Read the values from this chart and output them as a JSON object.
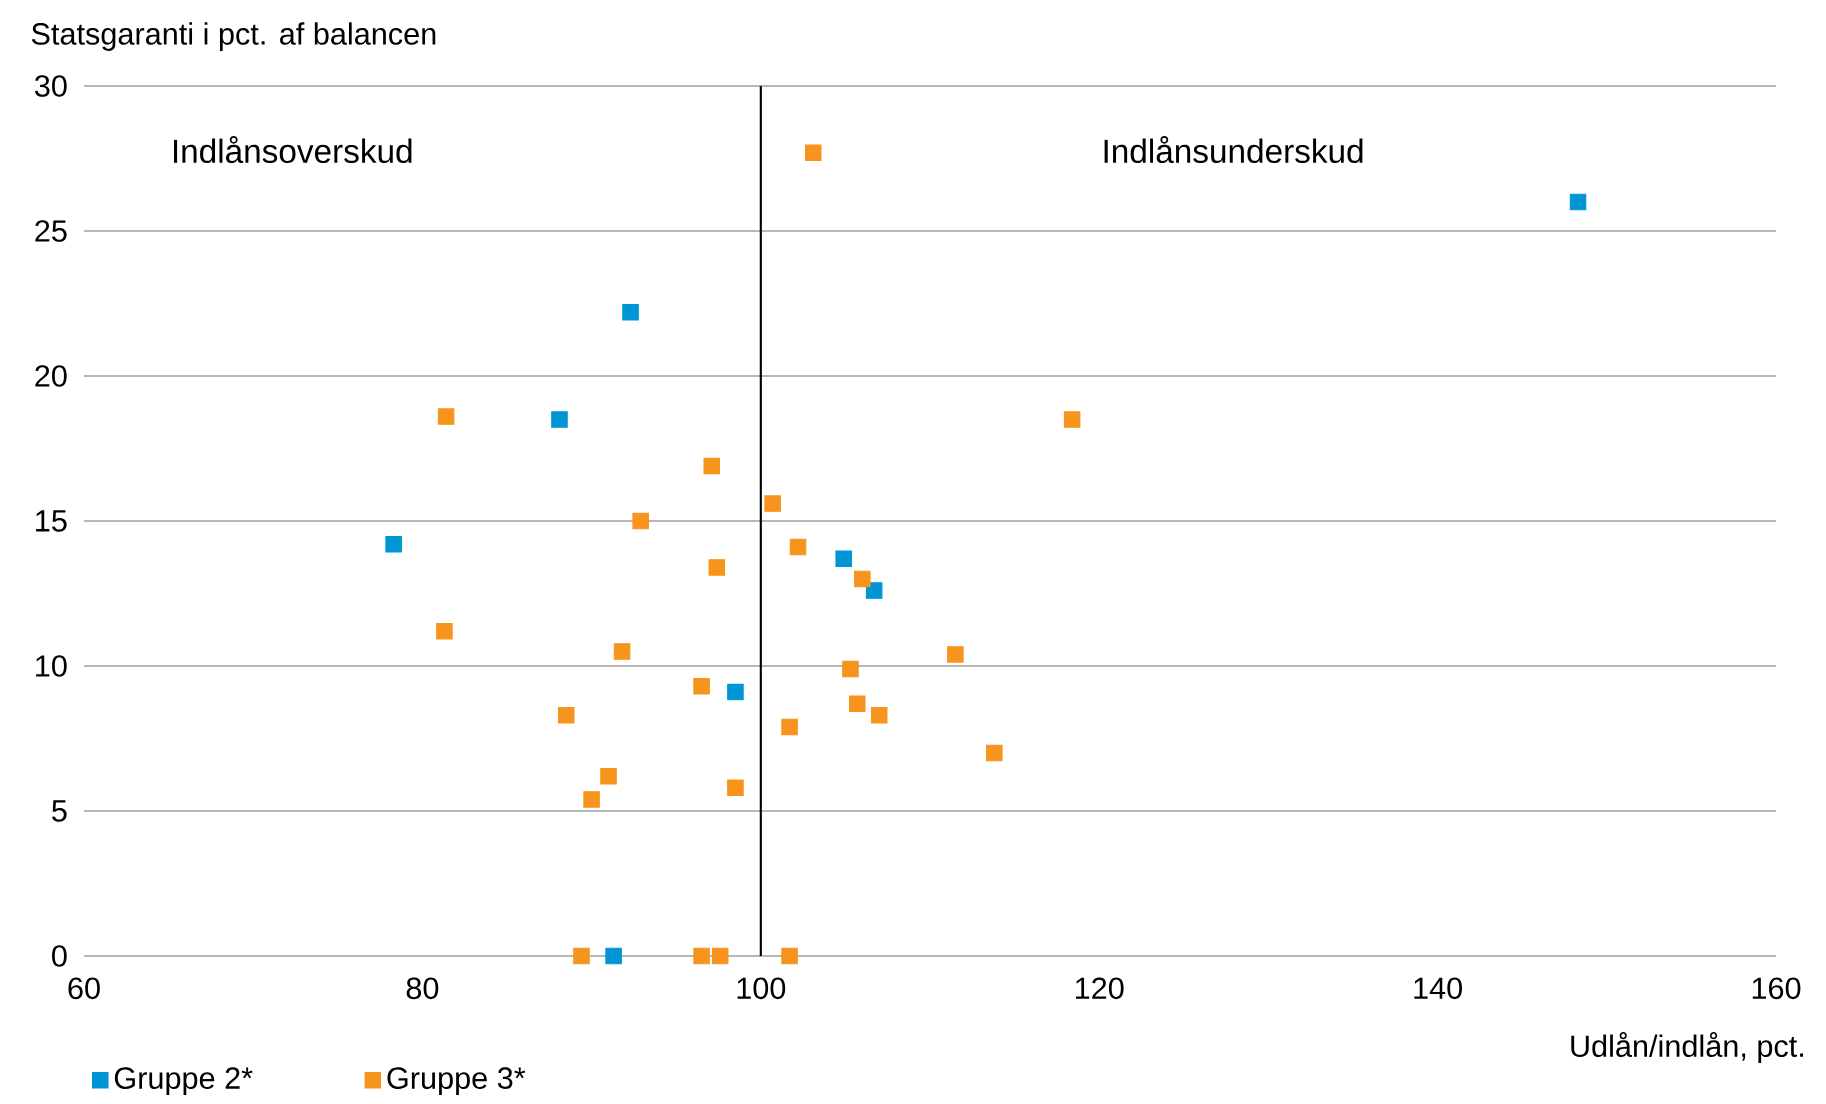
{
  "chart_data": {
    "type": "scatter",
    "xlabel": "Udlån/indlån, pct.",
    "ylabel": "Statsgaranti i pct. af balancen",
    "xlim": [
      60,
      160
    ],
    "xticks": [
      60,
      80,
      100,
      120,
      140,
      160
    ],
    "ylim": [
      0,
      30
    ],
    "yticks": [
      0,
      5,
      10,
      15,
      20,
      25,
      30
    ],
    "grid": "y",
    "legend": "bottom left",
    "marker": "square",
    "annotations": [
      "Indlånsoverskud",
      "Indlånsunderskud"
    ],
    "ref_lines": [
      {
        "axis": "x",
        "value": 100,
        "color": "#000000"
      }
    ],
    "series": [
      {
        "name": "Gruppe 2*",
        "color": "#0096d6",
        "x": [
          148.3,
          92.3,
          88.1,
          78.3,
          104.9,
          106.7,
          98.5,
          91.3
        ],
        "values": [
          26.0,
          22.2,
          18.5,
          14.2,
          13.7,
          12.6,
          9.1,
          0
        ]
      },
      {
        "name": "Gruppe 3*",
        "color": "#f7941d",
        "x": [
          103.1,
          118.4,
          81.4,
          97.1,
          100.7,
          92.9,
          102.2,
          97.4,
          106.0,
          81.3,
          91.8,
          111.5,
          105.3,
          96.5,
          105.7,
          88.5,
          107.0,
          101.7,
          113.8,
          91.0,
          98.5,
          90.0,
          89.4,
          96.5,
          97.6,
          101.7
        ],
        "values": [
          27.7,
          18.5,
          18.6,
          16.9,
          15.6,
          15.0,
          14.1,
          13.4,
          13.0,
          11.2,
          10.5,
          10.4,
          9.9,
          9.3,
          8.7,
          8.3,
          8.3,
          7.9,
          7.0,
          6.2,
          5.8,
          5.4,
          0,
          0,
          0,
          0
        ]
      }
    ]
  }
}
